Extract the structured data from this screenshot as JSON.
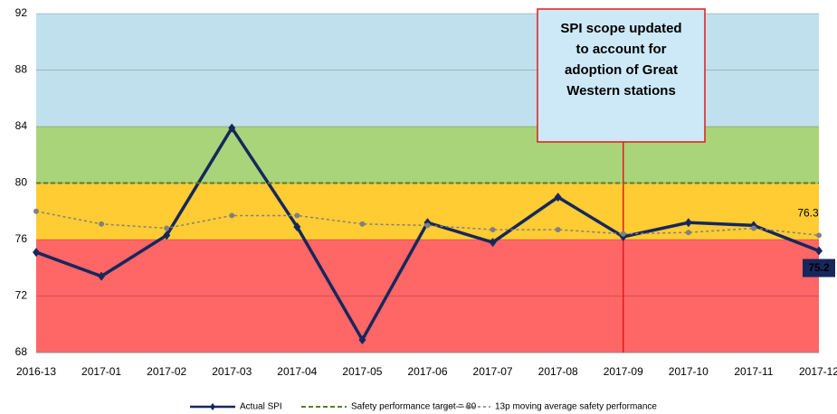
{
  "chart_data": {
    "type": "line",
    "categories": [
      "2016-13",
      "2017-01",
      "2017-02",
      "2017-03",
      "2017-04",
      "2017-05",
      "2017-06",
      "2017-07",
      "2017-08",
      "2017-09",
      "2017-10",
      "2017-11",
      "2017-12"
    ],
    "ylim": [
      68,
      92
    ],
    "yticks": [
      68,
      72,
      76,
      80,
      84,
      88,
      92
    ],
    "grid": true,
    "bands": [
      {
        "from": 68,
        "to": 76,
        "color": "#ff6666"
      },
      {
        "from": 76,
        "to": 80,
        "color": "#ffcc33"
      },
      {
        "from": 80,
        "to": 84,
        "color": "#a9d47a"
      },
      {
        "from": 84,
        "to": 92,
        "color": "#bfe0ec"
      }
    ],
    "series": [
      {
        "name": "Actual SPI",
        "color": "#17275c",
        "style": "solid",
        "marker": "diamond",
        "label_last": true,
        "values": [
          75.1,
          73.4,
          76.3,
          83.9,
          76.9,
          68.9,
          77.2,
          75.8,
          79.0,
          76.2,
          77.2,
          77.0,
          75.2
        ]
      },
      {
        "name": "Safety performance target = 80",
        "color": "#5c7a29",
        "style": "dashed",
        "marker": "none",
        "label_last": false,
        "values": [
          80,
          80,
          80,
          80,
          80,
          80,
          80,
          80,
          80,
          80,
          80,
          80,
          80
        ]
      },
      {
        "name": "13p moving average safety performance",
        "color": "#808080",
        "style": "dotted",
        "marker": "circle",
        "label_last": true,
        "values": [
          78.0,
          77.1,
          76.8,
          77.7,
          77.7,
          77.1,
          77.0,
          76.7,
          76.7,
          76.4,
          76.5,
          76.8,
          76.3
        ]
      }
    ],
    "annotation": {
      "x": "2017-09",
      "color": "#e31a1c",
      "fill": "#cde9f7",
      "lines": [
        "SPI scope updated",
        "to account for",
        "adoption of Great",
        "Western stations"
      ]
    }
  }
}
